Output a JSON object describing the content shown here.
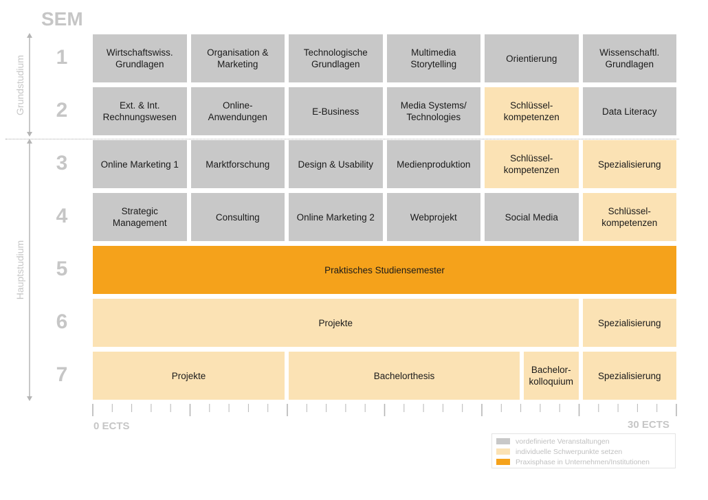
{
  "header": "SEM",
  "phases": [
    {
      "label": "Grundstudium",
      "from_sem": 1,
      "to_sem": 2
    },
    {
      "label": "Hauptstudium",
      "from_sem": 3,
      "to_sem": 7
    }
  ],
  "semesters": [
    {
      "label": "1",
      "cells": [
        {
          "text": "Wirtschaftswiss.\nGrundlagen",
          "type": "predefined",
          "start_col": 0,
          "span_cols": 1
        },
        {
          "text": "Organisation &\nMarketing",
          "type": "predefined",
          "start_col": 1,
          "span_cols": 1
        },
        {
          "text": "Technologische\nGrundlagen",
          "type": "predefined",
          "start_col": 2,
          "span_cols": 1
        },
        {
          "text": "Multimedia\nStorytelling",
          "type": "predefined",
          "start_col": 3,
          "span_cols": 1
        },
        {
          "text": "Orientierung",
          "type": "predefined",
          "start_col": 4,
          "span_cols": 1
        },
        {
          "text": "Wissenschaftl.\nGrundlagen",
          "type": "predefined",
          "start_col": 5,
          "span_cols": 1
        }
      ]
    },
    {
      "label": "2",
      "cells": [
        {
          "text": "Ext. & Int.\nRechnungswesen",
          "type": "predefined",
          "start_col": 0,
          "span_cols": 1
        },
        {
          "text": "Online-\nAnwendungen",
          "type": "predefined",
          "start_col": 1,
          "span_cols": 1
        },
        {
          "text": "E-Business",
          "type": "predefined",
          "start_col": 2,
          "span_cols": 1
        },
        {
          "text": "Media Systems/\nTechnologies",
          "type": "predefined",
          "start_col": 3,
          "span_cols": 1
        },
        {
          "text": "Schlüssel-\nkompetenzen",
          "type": "individual",
          "start_col": 4,
          "span_cols": 1
        },
        {
          "text": "Data Literacy",
          "type": "predefined",
          "start_col": 5,
          "span_cols": 1
        }
      ]
    },
    {
      "label": "3",
      "cells": [
        {
          "text": "Online Marketing 1",
          "type": "predefined",
          "start_col": 0,
          "span_cols": 1
        },
        {
          "text": "Marktforschung",
          "type": "predefined",
          "start_col": 1,
          "span_cols": 1
        },
        {
          "text": "Design & Usability",
          "type": "predefined",
          "start_col": 2,
          "span_cols": 1
        },
        {
          "text": "Medienproduktion",
          "type": "predefined",
          "start_col": 3,
          "span_cols": 1
        },
        {
          "text": "Schlüssel-\nkompetenzen",
          "type": "individual",
          "start_col": 4,
          "span_cols": 1
        },
        {
          "text": "Spezialisierung",
          "type": "individual",
          "start_col": 5,
          "span_cols": 1
        }
      ]
    },
    {
      "label": "4",
      "cells": [
        {
          "text": "Strategic\nManagement",
          "type": "predefined",
          "start_col": 0,
          "span_cols": 1
        },
        {
          "text": "Consulting",
          "type": "predefined",
          "start_col": 1,
          "span_cols": 1
        },
        {
          "text": "Online Marketing 2",
          "type": "predefined",
          "start_col": 2,
          "span_cols": 1
        },
        {
          "text": "Webprojekt",
          "type": "predefined",
          "start_col": 3,
          "span_cols": 1
        },
        {
          "text": "Social Media",
          "type": "predefined",
          "start_col": 4,
          "span_cols": 1
        },
        {
          "text": "Schlüssel-\nkompetenzen",
          "type": "individual",
          "start_col": 5,
          "span_cols": 1
        }
      ]
    },
    {
      "label": "5",
      "cells": [
        {
          "text": "Praktisches Studiensemester",
          "type": "practice",
          "start_col": 0,
          "span_cols": 6
        }
      ]
    },
    {
      "label": "6",
      "cells": [
        {
          "text": "Projekte",
          "type": "individual",
          "start_col": 0,
          "span_cols": 5
        },
        {
          "text": "Spezialisierung",
          "type": "individual",
          "start_col": 5,
          "span_cols": 1
        }
      ]
    },
    {
      "label": "7",
      "cells": [
        {
          "text": "Projekte",
          "type": "individual",
          "start_col": 0,
          "span_cols": 2
        },
        {
          "text": "Bachelorthesis",
          "type": "individual",
          "start_col": 2,
          "span_cols": 2.4
        },
        {
          "text": "Bachelor-\nkolloquium",
          "type": "individual",
          "start_col": 4.4,
          "span_cols": 0.6
        },
        {
          "text": "Spezialisierung",
          "type": "individual",
          "start_col": 5,
          "span_cols": 1
        }
      ]
    }
  ],
  "scale": {
    "start_label": "0 ECTS",
    "end_label": "30 ECTS",
    "max_ects": 30
  },
  "colors": {
    "predefined": "#c8c8c8",
    "individual": "#fbe2b4",
    "practice": "#f5a21b",
    "muted": "#c6c6c6",
    "axis": "#b5b5b5"
  },
  "legend": [
    {
      "type": "predefined",
      "label": "vordefinierte Veranstaltungen"
    },
    {
      "type": "individual",
      "label": "individuelle Schwerpunkte setzen"
    },
    {
      "type": "practice",
      "label": "Praxisphase in Unternehmen/Institutionen"
    }
  ]
}
